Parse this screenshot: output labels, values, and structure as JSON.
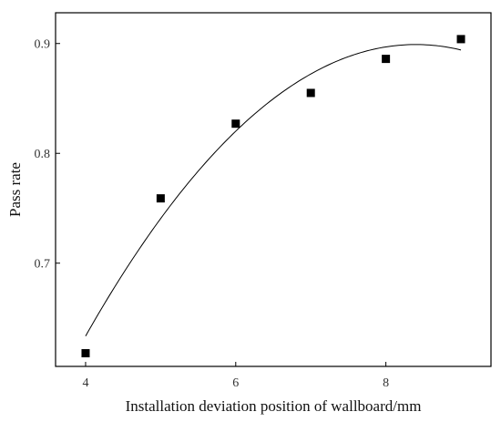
{
  "chart_data": {
    "type": "scatter",
    "xlabel": "Installation deviation position of wallboard/mm",
    "ylabel": "Pass rate",
    "xlim": [
      3.6,
      9.4
    ],
    "ylim": [
      0.606,
      0.928
    ],
    "x_ticks": [
      4,
      6,
      8
    ],
    "y_ticks": [
      0.7,
      0.8,
      0.9
    ],
    "x_tick_labels": [
      "4",
      "6",
      "8"
    ],
    "y_tick_labels": [
      "0.7",
      "0.8",
      "0.9"
    ],
    "grid": false,
    "legend": "none",
    "series": [
      {
        "marker": "square",
        "color": "#000000",
        "points": [
          {
            "x": 4,
            "y": 0.618
          },
          {
            "x": 5,
            "y": 0.759
          },
          {
            "x": 6,
            "y": 0.827
          },
          {
            "x": 7,
            "y": 0.855
          },
          {
            "x": 8,
            "y": 0.886
          },
          {
            "x": 9,
            "y": 0.904
          }
        ]
      }
    ],
    "fit_curve": {
      "type": "quadratic",
      "color": "#000000",
      "x_range": [
        4,
        9
      ],
      "points": [
        {
          "x": 4,
          "y": 0.633
        },
        {
          "x": 6,
          "y": 0.823
        },
        {
          "x": 7,
          "y": 0.87
        },
        {
          "x": 8,
          "y": 0.896
        },
        {
          "x": 8.5,
          "y": 0.899
        },
        {
          "x": 9,
          "y": 0.895
        }
      ]
    }
  }
}
